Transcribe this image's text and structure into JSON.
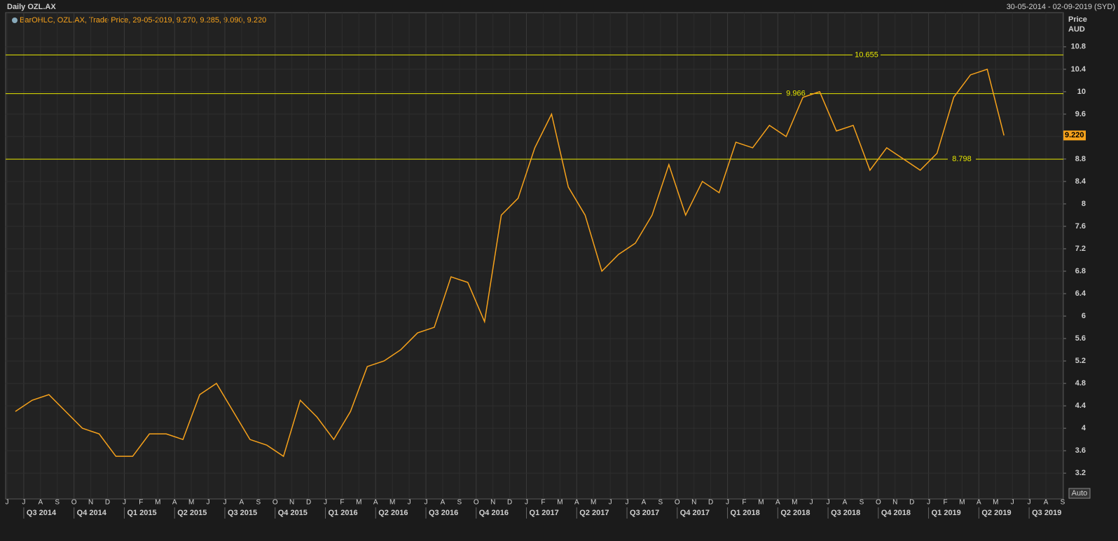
{
  "chart_data": {
    "type": "line",
    "title": "Daily OZL.AX",
    "date_range": "30-05-2014 - 02-09-2019 (SYD)",
    "legend_text": "BarOHLC, OZL.AX, Trade Price, 29-05-2019, 9.270, 9.285, 9.090, 9.220",
    "y_axis_label": "Price",
    "y_axis_unit": "AUD",
    "scale_mode": "Auto",
    "categories": [
      "J",
      "J",
      "A",
      "S",
      "O",
      "N",
      "D",
      "J",
      "F",
      "M",
      "A",
      "M",
      "J",
      "J",
      "A",
      "S",
      "O",
      "N",
      "D",
      "J",
      "F",
      "M",
      "A",
      "M",
      "J",
      "J",
      "A",
      "S",
      "O",
      "N",
      "D",
      "J",
      "F",
      "M",
      "A",
      "M",
      "J",
      "J",
      "A",
      "S",
      "O",
      "N",
      "D",
      "J",
      "F",
      "M",
      "A",
      "M",
      "J",
      "J",
      "A",
      "S",
      "O",
      "N",
      "D",
      "J",
      "F",
      "M",
      "A",
      "M",
      "J",
      "J",
      "A",
      "S"
    ],
    "quarters": [
      "Q3 2014",
      "Q4 2014",
      "Q1 2015",
      "Q2 2015",
      "Q3 2015",
      "Q4 2015",
      "Q1 2016",
      "Q2 2016",
      "Q3 2016",
      "Q4 2016",
      "Q1 2017",
      "Q2 2017",
      "Q3 2017",
      "Q4 2017",
      "Q1 2018",
      "Q2 2018",
      "Q3 2018",
      "Q4 2018",
      "Q1 2019",
      "Q2 2019",
      "Q3 2019"
    ],
    "series": [
      {
        "name": "OZL.AX",
        "color": "#f7a21b",
        "values": [
          4.3,
          4.5,
          4.6,
          4.3,
          4.0,
          3.9,
          3.5,
          3.5,
          3.9,
          3.9,
          3.8,
          4.6,
          4.8,
          4.3,
          3.8,
          3.7,
          3.5,
          4.5,
          4.2,
          3.8,
          4.3,
          5.1,
          5.2,
          5.4,
          5.7,
          5.8,
          6.7,
          6.6,
          5.9,
          7.8,
          8.1,
          9.0,
          9.6,
          8.3,
          7.8,
          6.8,
          7.1,
          7.3,
          7.8,
          8.7,
          7.8,
          8.4,
          8.2,
          9.1,
          9.0,
          9.4,
          9.2,
          9.9,
          10.0,
          9.3,
          9.4,
          8.6,
          9.0,
          8.8,
          8.6,
          8.9,
          9.9,
          10.3,
          10.4,
          9.22,
          null,
          null,
          null,
          null
        ]
      }
    ],
    "last_price": {
      "value": 9.22,
      "label": "9.220"
    },
    "hlines": [
      10.655,
      9.966,
      8.798
    ],
    "hline_color": "#e8e800",
    "ylim": [
      2.74,
      11.41
    ],
    "yticks": [
      3.2,
      3.6,
      4,
      4.4,
      4.8,
      5.2,
      5.6,
      6,
      6.4,
      6.8,
      7.2,
      7.6,
      8,
      8.4,
      8.8,
      9.2,
      9.6,
      10,
      10.4,
      10.8
    ],
    "grid": true
  }
}
